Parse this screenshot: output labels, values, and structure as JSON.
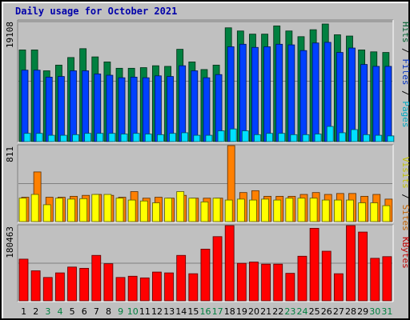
{
  "title": "Daily usage for October 2021",
  "colors": {
    "hits": "#008040",
    "files": "#0040ff",
    "pages": "#00e0ff",
    "visits": "#ffff00",
    "sites": "#ff8000",
    "kbytes": "#ff0000",
    "weekend_day": "#008040",
    "weekday": "#000000",
    "divider": "#000000"
  },
  "chart_data": [
    {
      "type": "bar",
      "panel": "top",
      "ymax_label": "19108",
      "ylim": [
        0,
        19108
      ],
      "right_labels": [
        "Hits",
        "Files",
        "Pages"
      ],
      "categories": [
        "1",
        "2",
        "3",
        "4",
        "5",
        "6",
        "7",
        "8",
        "9",
        "10",
        "11",
        "12",
        "13",
        "14",
        "15",
        "16",
        "17",
        "18",
        "19",
        "20",
        "21",
        "22",
        "23",
        "24",
        "25",
        "26",
        "27",
        "28",
        "29",
        "30",
        "31"
      ],
      "series": [
        {
          "name": "Hits",
          "values": [
            14500,
            14500,
            11200,
            12100,
            13300,
            14700,
            13400,
            12600,
            11600,
            11600,
            11700,
            12000,
            11900,
            14600,
            12600,
            11400,
            12100,
            18000,
            17500,
            17000,
            17000,
            18300,
            17500,
            16600,
            17700,
            18600,
            16900,
            16700,
            14500,
            14200,
            14100
          ]
        },
        {
          "name": "Files",
          "values": [
            11300,
            11300,
            10200,
            10300,
            11200,
            11200,
            10700,
            10500,
            10100,
            10200,
            10100,
            10400,
            10300,
            12000,
            11200,
            10100,
            10600,
            15000,
            15400,
            14900,
            15000,
            15400,
            15300,
            14400,
            15600,
            15700,
            14100,
            14800,
            12200,
            11900,
            11900
          ]
        },
        {
          "name": "Pages",
          "values": [
            1300,
            1300,
            1000,
            1000,
            1100,
            1300,
            1300,
            1300,
            1200,
            1300,
            1200,
            1100,
            1300,
            1400,
            1000,
            1000,
            1700,
            2000,
            1700,
            1100,
            1300,
            1300,
            1100,
            1100,
            1200,
            2400,
            1400,
            1900,
            1100,
            1000,
            900
          ]
        }
      ]
    },
    {
      "type": "bar",
      "panel": "middle",
      "ymax_label": "811",
      "ylim": [
        0,
        811
      ],
      "right_labels": [
        "Visits",
        "Sites"
      ],
      "categories": [
        "1",
        "2",
        "3",
        "4",
        "5",
        "6",
        "7",
        "8",
        "9",
        "10",
        "11",
        "12",
        "13",
        "14",
        "15",
        "16",
        "17",
        "18",
        "19",
        "20",
        "21",
        "22",
        "23",
        "24",
        "25",
        "26",
        "27",
        "28",
        "29",
        "30",
        "31"
      ],
      "series": [
        {
          "name": "Visits",
          "values": [
            250,
            290,
            180,
            250,
            240,
            245,
            290,
            290,
            250,
            230,
            220,
            200,
            250,
            320,
            250,
            210,
            250,
            230,
            240,
            230,
            240,
            230,
            250,
            250,
            250,
            230,
            230,
            230,
            200,
            200,
            170
          ]
        },
        {
          "name": "Sites",
          "values": [
            260,
            530,
            260,
            260,
            270,
            280,
            290,
            280,
            260,
            320,
            250,
            260,
            250,
            280,
            250,
            250,
            250,
            840,
            310,
            330,
            270,
            270,
            270,
            290,
            310,
            290,
            300,
            300,
            270,
            290,
            240
          ]
        }
      ]
    },
    {
      "type": "bar",
      "panel": "bottom",
      "ymax_label": "180463",
      "ylim": [
        0,
        180463
      ],
      "right_labels": [
        "KBytes"
      ],
      "categories": [
        "1",
        "2",
        "3",
        "4",
        "5",
        "6",
        "7",
        "8",
        "9",
        "10",
        "11",
        "12",
        "13",
        "14",
        "15",
        "16",
        "17",
        "18",
        "19",
        "20",
        "21",
        "22",
        "23",
        "24",
        "25",
        "26",
        "27",
        "28",
        "29",
        "30",
        "31"
      ],
      "series": [
        {
          "name": "KBytes",
          "values": [
            100000,
            72000,
            56000,
            67000,
            81000,
            78000,
            109000,
            89000,
            56000,
            59000,
            55000,
            69000,
            67000,
            109000,
            65000,
            124000,
            154000,
            182000,
            90000,
            93000,
            88000,
            88000,
            66000,
            107000,
            174000,
            119000,
            65000,
            188000,
            165000,
            102000,
            106000
          ]
        }
      ]
    }
  ],
  "day_label_colors": [
    "#000000",
    "#000000",
    "#008040",
    "#008040",
    "#000000",
    "#000000",
    "#000000",
    "#000000",
    "#008040",
    "#008040",
    "#000000",
    "#000000",
    "#000000",
    "#000000",
    "#000000",
    "#008040",
    "#008040",
    "#000000",
    "#000000",
    "#000000",
    "#000000",
    "#000000",
    "#008040",
    "#008040",
    "#000000",
    "#000000",
    "#000000",
    "#000000",
    "#000000",
    "#008040",
    "#008040"
  ]
}
